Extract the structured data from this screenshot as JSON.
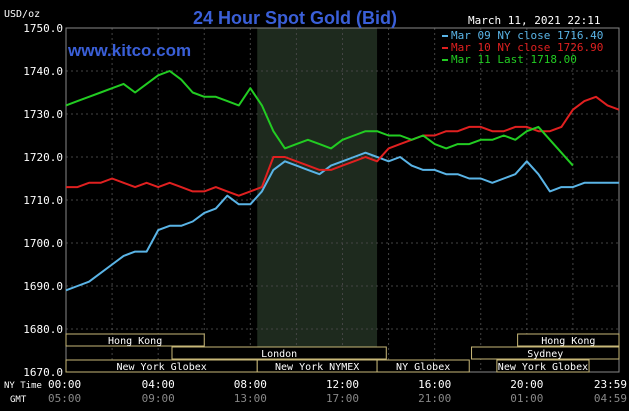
{
  "chart_data": {
    "type": "line",
    "title": "24 Hour Spot Gold (Bid)",
    "brand": "www.kitco.com",
    "datetime": "March 11, 2021 22:11",
    "ylabel": "USD/oz",
    "ylim": [
      1670,
      1750
    ],
    "yticks": [
      "1750.0",
      "1740.0",
      "1730.0",
      "1720.0",
      "1710.0",
      "1700.0",
      "1690.0",
      "1680.0",
      "1670.0"
    ],
    "grid": true,
    "legend_position": "top-right",
    "time_labels": {
      "ny_label": "NY Time",
      "gmt_label": "GMT",
      "ny": [
        "00:00",
        "04:00",
        "08:00",
        "12:00",
        "16:00",
        "20:00",
        "23:59"
      ],
      "gmt": [
        "05:00",
        "09:00",
        "13:00",
        "17:00",
        "21:00",
        "01:00",
        "04:59"
      ]
    },
    "sessions": [
      {
        "name": "Hong Kong"
      },
      {
        "name": "London"
      },
      {
        "name": "New York Globex"
      },
      {
        "name": "New York NYMEX"
      },
      {
        "name": "NY Globex"
      },
      {
        "name": "Hong Kong"
      },
      {
        "name": "Sydney"
      },
      {
        "name": "New York Globex"
      }
    ],
    "colors": {
      "mar09": "#5ab4e6",
      "mar10": "#e02020",
      "mar11": "#22cc22",
      "grid": "#444444",
      "shade": "#1e2a1e",
      "text": "#ffffff",
      "title": "#3a5fd8"
    },
    "series": [
      {
        "key": "mar09",
        "name": "Mar 09 NY close 1716.40",
        "color": "#5ab4e6",
        "x": [
          0,
          0.5,
          1,
          1.5,
          2,
          2.5,
          3,
          3.5,
          4,
          4.5,
          5,
          5.5,
          6,
          6.5,
          7,
          7.5,
          8,
          8.5,
          9,
          9.5,
          10,
          10.5,
          11,
          11.5,
          12,
          12.5,
          13,
          13.5,
          14,
          14.5,
          15,
          15.5,
          16,
          16.5,
          17,
          17.5,
          18,
          18.5,
          19,
          19.5,
          20,
          20.5,
          21,
          21.5,
          22,
          22.5,
          23,
          23.5,
          24
        ],
        "y": [
          1689,
          1690,
          1691,
          1693,
          1695,
          1697,
          1698,
          1698,
          1703,
          1704,
          1704,
          1705,
          1707,
          1708,
          1711,
          1709,
          1709,
          1712,
          1717,
          1719,
          1718,
          1717,
          1716,
          1718,
          1719,
          1720,
          1721,
          1720,
          1719,
          1720,
          1718,
          1717,
          1717,
          1716,
          1716,
          1715,
          1715,
          1714,
          1715,
          1716,
          1719,
          1716,
          1712,
          1713,
          1713,
          1714,
          1714,
          1714,
          1714
        ]
      },
      {
        "key": "mar10",
        "name": "Mar 10 NY close 1726.90",
        "color": "#e02020",
        "x": [
          0,
          0.5,
          1,
          1.5,
          2,
          2.5,
          3,
          3.5,
          4,
          4.5,
          5,
          5.5,
          6,
          6.5,
          7,
          7.5,
          8,
          8.5,
          9,
          9.5,
          10,
          10.5,
          11,
          11.5,
          12,
          12.5,
          13,
          13.5,
          14,
          14.5,
          15,
          15.5,
          16,
          16.5,
          17,
          17.5,
          18,
          18.5,
          19,
          19.5,
          20,
          20.5,
          21,
          21.5,
          22,
          22.5,
          23,
          23.5,
          24
        ],
        "y": [
          1713,
          1713,
          1714,
          1714,
          1715,
          1714,
          1713,
          1714,
          1713,
          1714,
          1713,
          1712,
          1712,
          1713,
          1712,
          1711,
          1712,
          1713,
          1720,
          1720,
          1719,
          1718,
          1717,
          1717,
          1718,
          1719,
          1720,
          1719,
          1722,
          1723,
          1724,
          1725,
          1725,
          1726,
          1726,
          1727,
          1727,
          1726,
          1726,
          1727,
          1727,
          1726,
          1726,
          1727,
          1731,
          1733,
          1734,
          1732,
          1731
        ]
      },
      {
        "key": "mar11",
        "name": "Mar 11 Last 1718.00",
        "color": "#22cc22",
        "x": [
          0,
          0.5,
          1,
          1.5,
          2,
          2.5,
          3,
          3.5,
          4,
          4.5,
          5,
          5.5,
          6,
          6.5,
          7,
          7.5,
          8,
          8.5,
          9,
          9.5,
          10,
          10.5,
          11,
          11.5,
          12,
          12.5,
          13,
          13.5,
          14,
          14.5,
          15,
          15.5,
          16,
          16.5,
          17,
          17.5,
          18,
          18.5,
          19,
          19.5,
          20,
          20.5,
          21,
          21.5,
          22
        ],
        "y": [
          1732,
          1733,
          1734,
          1735,
          1736,
          1737,
          1735,
          1737,
          1739,
          1740,
          1738,
          1735,
          1734,
          1734,
          1733,
          1732,
          1736,
          1732,
          1726,
          1722,
          1723,
          1724,
          1723,
          1722,
          1724,
          1725,
          1726,
          1726,
          1725,
          1725,
          1724,
          1725,
          1723,
          1722,
          1723,
          1723,
          1724,
          1724,
          1725,
          1724,
          1726,
          1727,
          1724,
          1721,
          1718
        ]
      }
    ]
  }
}
